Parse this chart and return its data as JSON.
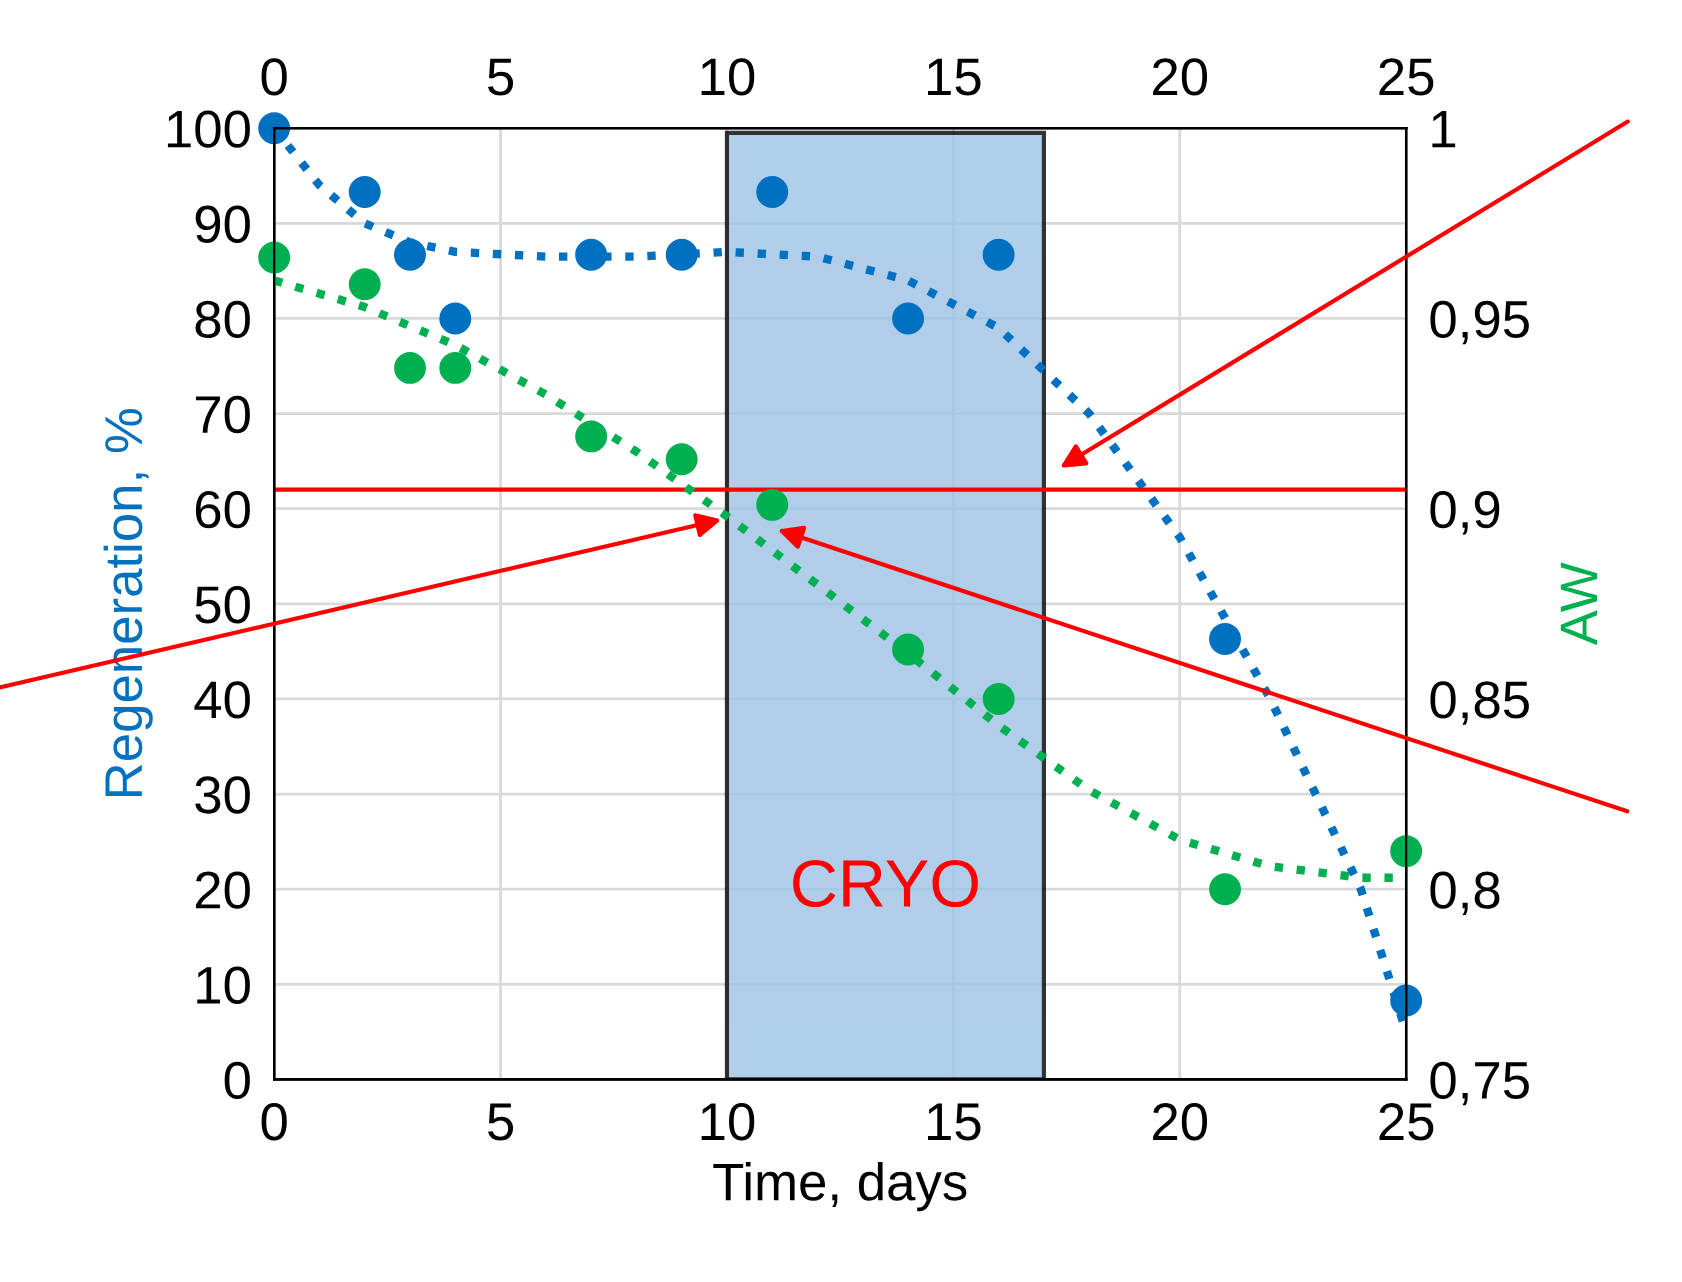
{
  "chart_data": {
    "type": "scatter",
    "xlabel": "Time, days",
    "ylabel": "Regeneration, %",
    "y2label": "AW",
    "xlim": [
      0,
      25
    ],
    "xticks": [
      0,
      5,
      10,
      15,
      20,
      25
    ],
    "x2lim": [
      0,
      25
    ],
    "x2ticks": [
      0,
      5,
      10,
      15,
      20,
      25
    ],
    "ylim": [
      0,
      100
    ],
    "yticks": [
      0,
      10,
      20,
      30,
      40,
      50,
      60,
      70,
      80,
      90,
      100
    ],
    "y2lim": [
      0.75,
      1
    ],
    "y2ticks": [
      {
        "value": 0.75,
        "label": "0,75"
      },
      {
        "value": 0.8,
        "label": "0,8"
      },
      {
        "value": 0.85,
        "label": "0,85"
      },
      {
        "value": 0.9,
        "label": "0,9"
      },
      {
        "value": 0.95,
        "label": "0,95"
      },
      {
        "value": 1,
        "label": "1"
      }
    ],
    "grid": true,
    "legend": false,
    "marker": "circle",
    "series": [
      {
        "color": "#0070c0",
        "x": [
          0,
          2,
          3,
          4,
          7,
          9,
          11,
          14,
          16,
          21,
          25
        ],
        "values": [
          100,
          93.3,
          86.7,
          80,
          86.7,
          86.7,
          93.3,
          80,
          86.7,
          46.3,
          8.3
        ]
      },
      {
        "axis": "y2",
        "color": "#00b050",
        "x": [
          0,
          2,
          3,
          4,
          7,
          9,
          11,
          14,
          16,
          21,
          25
        ],
        "values": [
          0.966,
          0.959,
          0.937,
          0.937,
          0.919,
          0.913,
          0.901,
          0.863,
          0.85,
          0.8,
          0.81
        ]
      },
      {
        "type": "line",
        "line_style": "dotted",
        "marker": "none",
        "color": "#0070c0",
        "x": [
          0,
          1,
          2,
          3,
          4,
          6,
          8,
          10,
          12,
          14,
          16,
          18,
          20,
          22,
          24,
          25
        ],
        "values": [
          100,
          94,
          90,
          88,
          87,
          86.5,
          86.5,
          87,
          86.5,
          84,
          79,
          70,
          57,
          40,
          20,
          5
        ]
      },
      {
        "type": "line",
        "axis": "y2",
        "line_style": "dotted",
        "marker": "none",
        "color": "#00b050",
        "x": [
          0,
          2,
          4,
          6,
          8,
          10,
          12,
          14,
          16,
          18,
          20,
          22,
          24,
          25
        ],
        "values": [
          0.96,
          0.953,
          0.943,
          0.93,
          0.915,
          0.898,
          0.88,
          0.862,
          0.843,
          0.826,
          0.813,
          0.806,
          0.803,
          0.803
        ]
      }
    ],
    "bands": [
      {
        "axis": "x",
        "from": 10,
        "to": 17,
        "label": "CRYO",
        "color": "#9dc3e6"
      }
    ],
    "ref_lines": [
      {
        "axis": "y",
        "value": 62,
        "color": "#ff0000"
      }
    ]
  }
}
